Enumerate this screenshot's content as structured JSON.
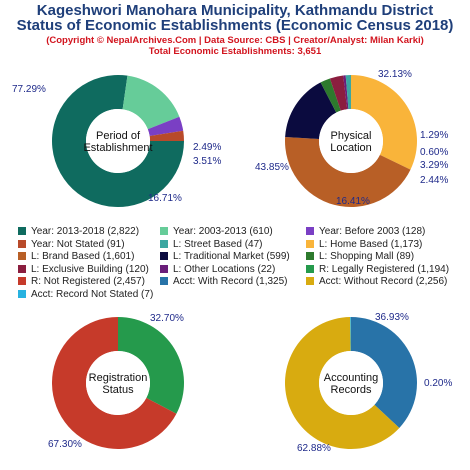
{
  "header": {
    "title_line1": "Kageshwori Manohara Municipality, Kathmandu District",
    "title_line2": "Status of Economic Establishments (Economic Census 2018)",
    "credit": "(Copyright © NepalArchives.Com | Data Source: CBS | Creator/Analyst: Milan Karki)",
    "total": "Total Economic Establishments: 3,651"
  },
  "chart_data": [
    {
      "type": "pie",
      "title": "Period of Establishment",
      "labels": [
        "Year: 2013-2018",
        "Year: 2003-2013",
        "Year: Before 2003",
        "Year: Not Stated"
      ],
      "values": [
        2822,
        610,
        128,
        91
      ],
      "percent_labels": [
        "77.29%",
        "16.71%",
        "3.51%",
        "2.49%"
      ],
      "colors": [
        "#0f6b5f",
        "#66cc99",
        "#7a3fc4",
        "#b84a2a"
      ]
    },
    {
      "type": "pie",
      "title": "Physical Location",
      "labels": [
        "L: Home Based",
        "L: Brand Based",
        "L: Traditional Market",
        "L: Shopping Mall",
        "L: Exclusive Building",
        "L: Other Locations",
        "L: Street Based"
      ],
      "values": [
        1173,
        1601,
        599,
        89,
        120,
        22,
        47
      ],
      "percent_labels": [
        "32.13%",
        "43.85%",
        "16.41%",
        "2.44%",
        "3.29%",
        "0.60%",
        "1.29%"
      ],
      "colors": [
        "#f9b43a",
        "#b85f26",
        "#0b0b3f",
        "#2d7a2d",
        "#8b1e3f",
        "#6a1e7a",
        "#3ba7a1"
      ]
    },
    {
      "type": "pie",
      "title": "Registration Status",
      "labels": [
        "R: Legally Registered",
        "R: Not Registered"
      ],
      "values": [
        1194,
        2457
      ],
      "percent_labels": [
        "32.70%",
        "67.30%"
      ],
      "colors": [
        "#259a4c",
        "#c63a2a"
      ]
    },
    {
      "type": "pie",
      "title": "Accounting Records",
      "labels": [
        "Acct: With Record",
        "Acct: Without Record",
        "Acct: Record Not Stated"
      ],
      "values": [
        1325,
        2256,
        7
      ],
      "percent_labels": [
        "36.93%",
        "62.88%",
        "0.20%"
      ],
      "colors": [
        "#2873a8",
        "#d8ab10",
        "#27b2e0"
      ]
    }
  ],
  "legend": [
    {
      "text": "Year: 2013-2018 (2,822)",
      "color": "#0f6b5f"
    },
    {
      "text": "Year: 2003-2013 (610)",
      "color": "#66cc99"
    },
    {
      "text": "Year: Before 2003 (128)",
      "color": "#7a3fc4"
    },
    {
      "text": "Year: Not Stated (91)",
      "color": "#b84a2a"
    },
    {
      "text": "L: Street Based (47)",
      "color": "#3ba7a1"
    },
    {
      "text": "L: Home Based (1,173)",
      "color": "#f9b43a"
    },
    {
      "text": "L: Brand Based (1,601)",
      "color": "#b85f26"
    },
    {
      "text": "L: Traditional Market (599)",
      "color": "#0b0b3f"
    },
    {
      "text": "L: Shopping Mall (89)",
      "color": "#2d7a2d"
    },
    {
      "text": "L: Exclusive Building (120)",
      "color": "#8b1e3f"
    },
    {
      "text": "L: Other Locations (22)",
      "color": "#6a1e7a"
    },
    {
      "text": "R: Legally Registered (1,194)",
      "color": "#259a4c"
    },
    {
      "text": "R: Not Registered (2,457)",
      "color": "#c63a2a"
    },
    {
      "text": "Acct: With Record (1,325)",
      "color": "#2873a8"
    },
    {
      "text": "Acct: Without Record (2,256)",
      "color": "#d8ab10"
    },
    {
      "text": "Acct: Record Not Stated (7)",
      "color": "#27b2e0"
    }
  ]
}
